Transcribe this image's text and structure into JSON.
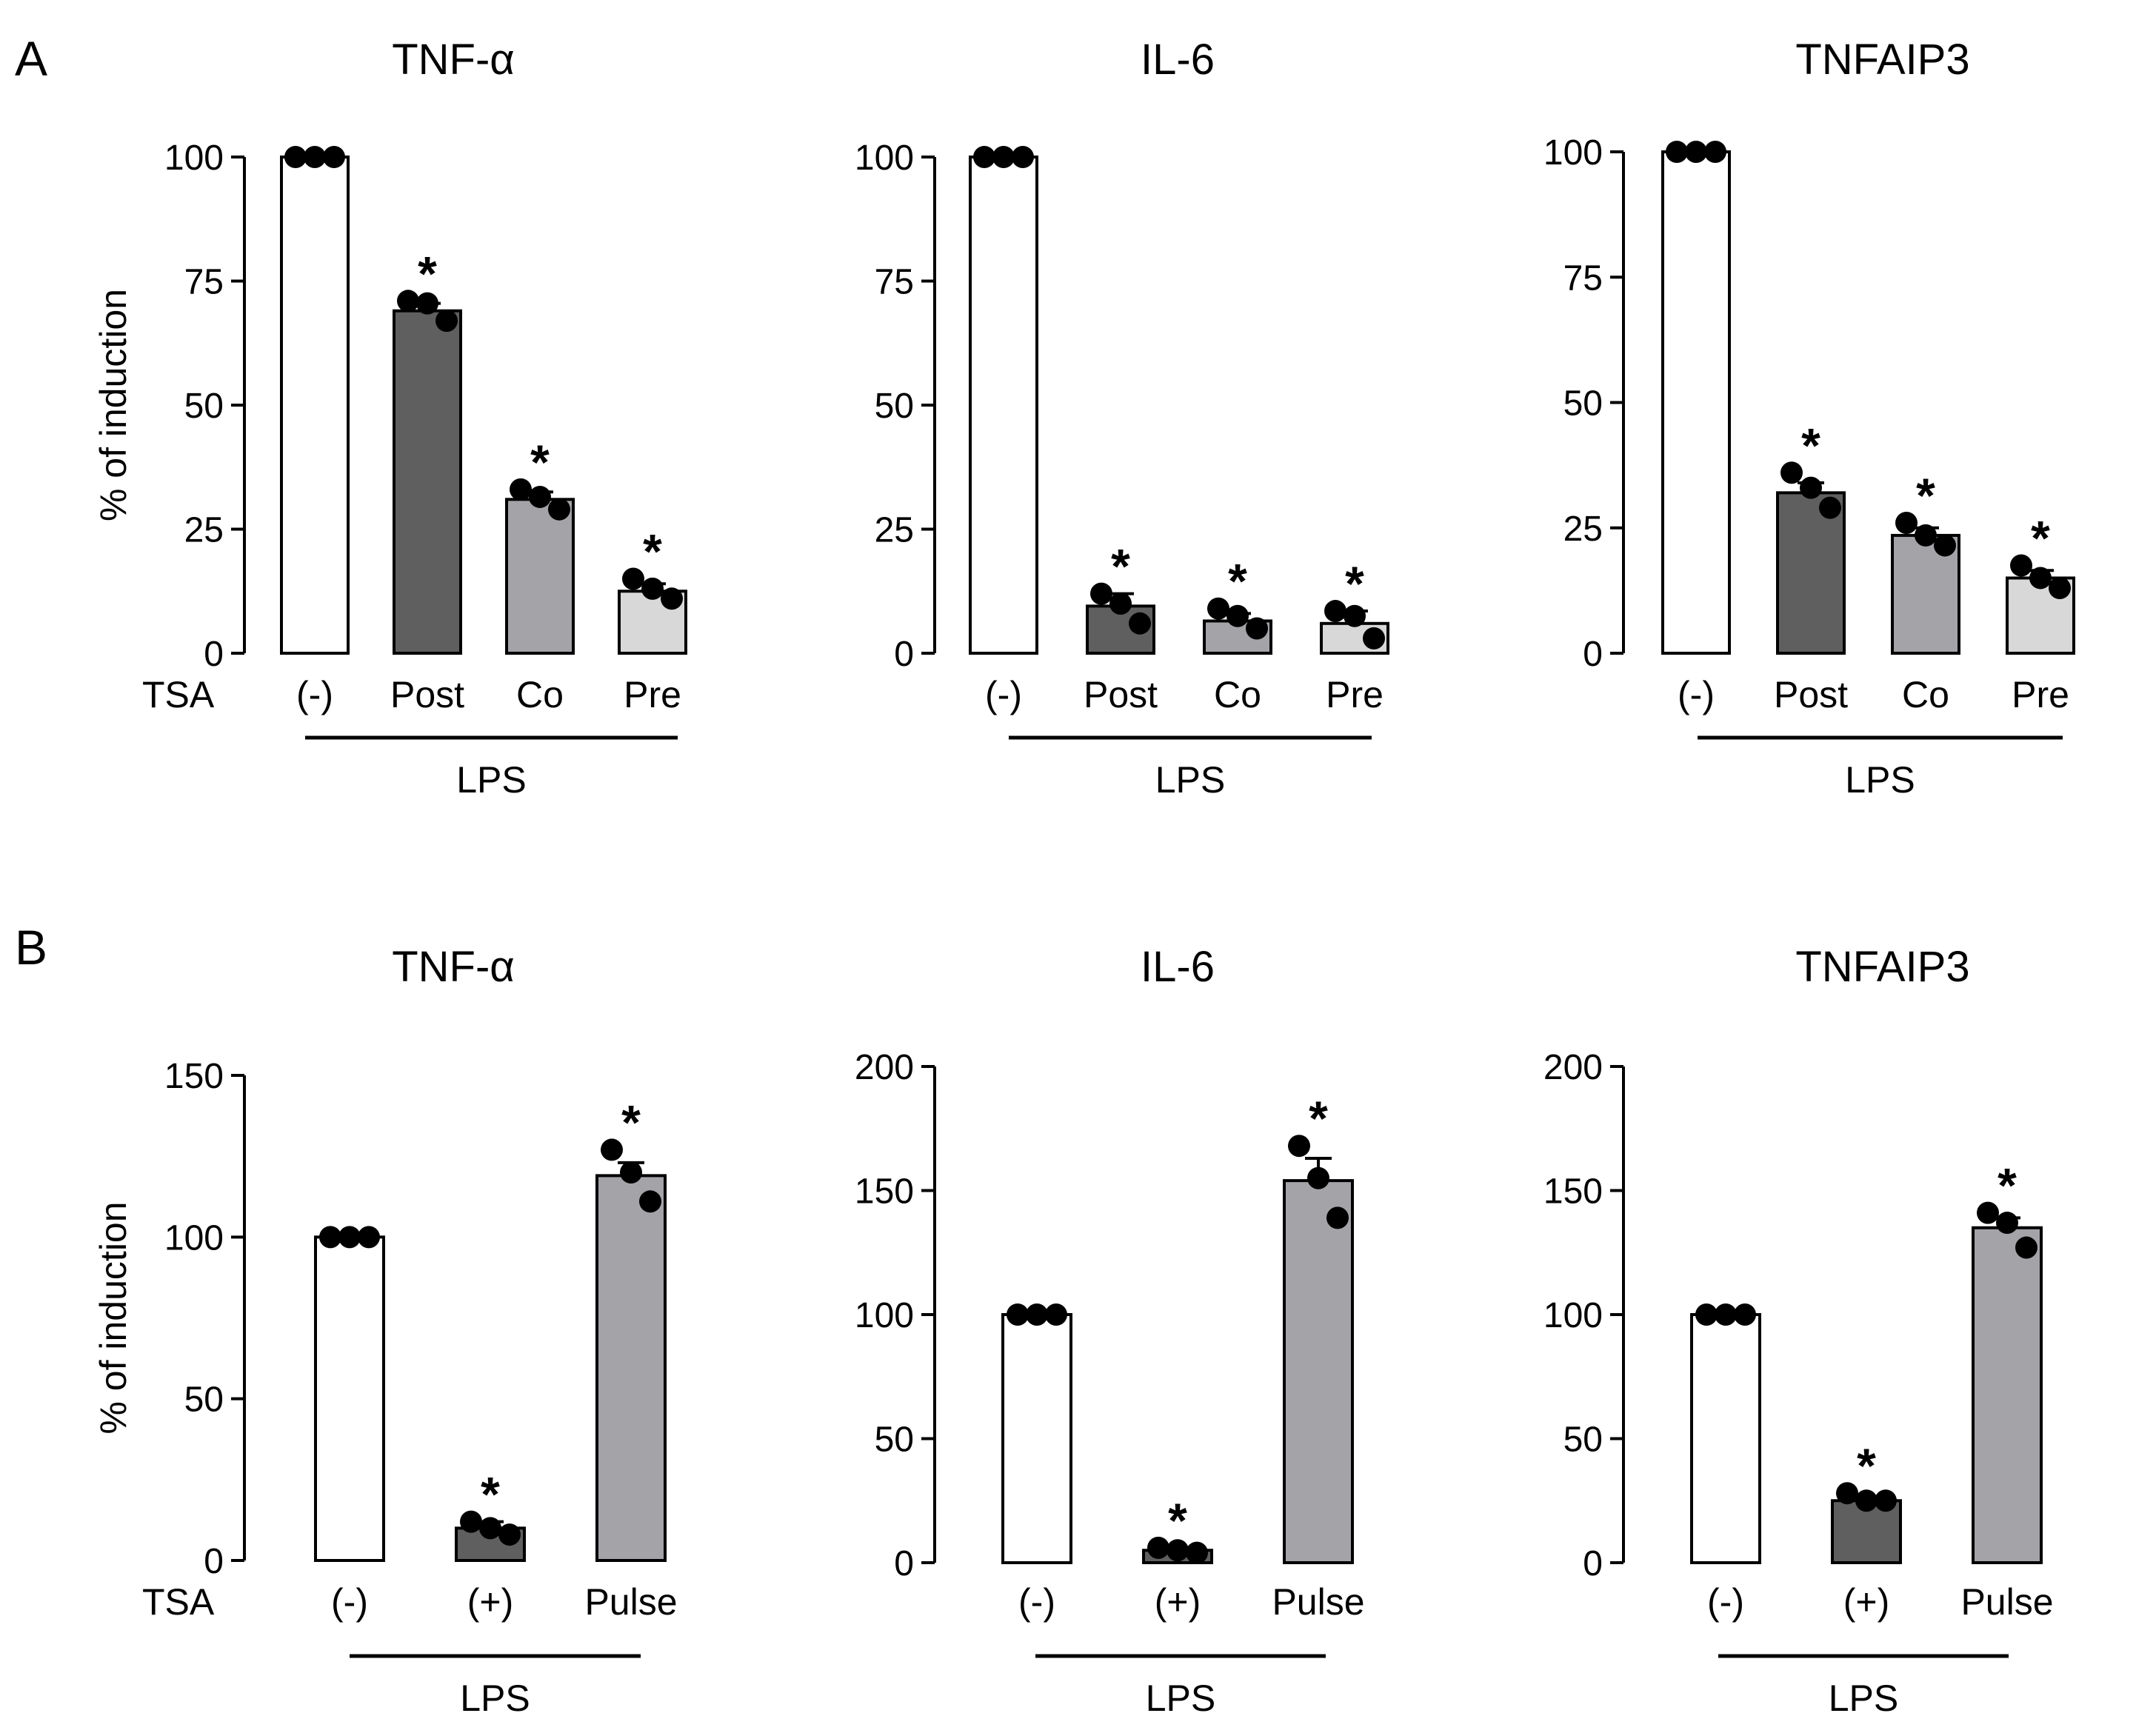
{
  "panels": [
    {
      "label": "A"
    },
    {
      "label": "B"
    }
  ],
  "charts": [
    {
      "panel": "A",
      "chart_data": {
        "type": "bar",
        "title": "TNF-α",
        "ylabel": "% of induction",
        "ylim": [
          0,
          100
        ],
        "yticks": [
          "0",
          "25",
          "50",
          "75",
          "100"
        ],
        "row_label": "TSA",
        "group_label": "LPS",
        "categories": [
          "(-)",
          "Post",
          "Co",
          "Pre"
        ],
        "values": [
          100,
          69,
          31,
          12.5
        ],
        "sem": [
          0,
          1.5,
          1.5,
          1.5
        ],
        "points": [
          [
            100,
            100,
            100
          ],
          [
            71,
            70.5,
            67
          ],
          [
            33,
            31.5,
            29
          ],
          [
            15,
            13,
            11
          ]
        ],
        "significant": [
          false,
          true,
          true,
          true
        ],
        "significance_symbol": "*",
        "colors": [
          "#ffffff",
          "#5f5f5f",
          "#a3a3a8",
          "#d8d8d8"
        ]
      }
    },
    {
      "panel": "A",
      "chart_data": {
        "type": "bar",
        "title": "IL-6",
        "ylabel": "",
        "ylim": [
          0,
          100
        ],
        "yticks": [
          "0",
          "25",
          "50",
          "75",
          "100"
        ],
        "row_label": "",
        "group_label": "LPS",
        "categories": [
          "(-)",
          "Post",
          "Co",
          "Pre"
        ],
        "values": [
          100,
          9.5,
          6.5,
          6
        ],
        "sem": [
          0,
          2.5,
          1.5,
          2.5
        ],
        "points": [
          [
            100,
            100,
            100
          ],
          [
            12,
            10,
            6
          ],
          [
            9,
            7.5,
            5
          ],
          [
            8.5,
            7.5,
            3
          ]
        ],
        "significant": [
          false,
          true,
          true,
          true
        ],
        "significance_symbol": "*",
        "colors": [
          "#ffffff",
          "#5f5f5f",
          "#a3a3a8",
          "#d8d8d8"
        ]
      }
    },
    {
      "panel": "A",
      "chart_data": {
        "type": "bar",
        "title": "TNFAIP3",
        "ylabel": "",
        "ylim": [
          0,
          100
        ],
        "yticks": [
          "0",
          "25",
          "50",
          "75",
          "100"
        ],
        "row_label": "",
        "group_label": "LPS",
        "categories": [
          "(-)",
          "Post",
          "Co",
          "Pre"
        ],
        "values": [
          100,
          32,
          23.5,
          15
        ],
        "sem": [
          0,
          2,
          1.5,
          1.5
        ],
        "points": [
          [
            100,
            100,
            100
          ],
          [
            36,
            33,
            29
          ],
          [
            26,
            23.5,
            21.5
          ],
          [
            17.5,
            15,
            13
          ]
        ],
        "significant": [
          false,
          true,
          true,
          true
        ],
        "significance_symbol": "*",
        "colors": [
          "#ffffff",
          "#5f5f5f",
          "#a3a3a8",
          "#d8d8d8"
        ]
      }
    },
    {
      "panel": "B",
      "chart_data": {
        "type": "bar",
        "title": "TNF-α",
        "ylabel": "% of induction",
        "ylim": [
          0,
          150
        ],
        "yticks": [
          "0",
          "50",
          "100",
          "150"
        ],
        "row_label": "TSA",
        "group_label": "LPS",
        "categories": [
          "(-)",
          "(+)",
          "Pulse"
        ],
        "values": [
          100,
          10,
          119
        ],
        "sem": [
          0,
          2,
          4
        ],
        "points": [
          [
            100,
            100,
            100
          ],
          [
            12,
            10,
            8
          ],
          [
            127,
            120,
            111
          ]
        ],
        "significant": [
          false,
          true,
          true
        ],
        "significance_symbol": "*",
        "colors": [
          "#ffffff",
          "#5f5f5f",
          "#a3a3a8"
        ]
      }
    },
    {
      "panel": "B",
      "chart_data": {
        "type": "bar",
        "title": "IL-6",
        "ylabel": "",
        "ylim": [
          0,
          200
        ],
        "yticks": [
          "0",
          "50",
          "100",
          "150",
          "200"
        ],
        "row_label": "",
        "group_label": "LPS",
        "categories": [
          "(-)",
          "(+)",
          "Pulse"
        ],
        "values": [
          100,
          5,
          154
        ],
        "sem": [
          0,
          1,
          9
        ],
        "points": [
          [
            100,
            100,
            100
          ],
          [
            6,
            5,
            4
          ],
          [
            168,
            155,
            139
          ]
        ],
        "significant": [
          false,
          true,
          true
        ],
        "significance_symbol": "*",
        "colors": [
          "#ffffff",
          "#5f5f5f",
          "#a3a3a8"
        ]
      }
    },
    {
      "panel": "B",
      "chart_data": {
        "type": "bar",
        "title": "TNFAIP3",
        "ylabel": "",
        "ylim": [
          0,
          200
        ],
        "yticks": [
          "0",
          "50",
          "100",
          "150",
          "200"
        ],
        "row_label": "",
        "group_label": "LPS",
        "categories": [
          "(-)",
          "(+)",
          "Pulse"
        ],
        "values": [
          100,
          25,
          135
        ],
        "sem": [
          0,
          1,
          4
        ],
        "points": [
          [
            100,
            100,
            100
          ],
          [
            28,
            25,
            25
          ],
          [
            141,
            137,
            127
          ]
        ],
        "significant": [
          false,
          true,
          true
        ],
        "significance_symbol": "*",
        "colors": [
          "#ffffff",
          "#5f5f5f",
          "#a3a3a8"
        ]
      }
    }
  ]
}
